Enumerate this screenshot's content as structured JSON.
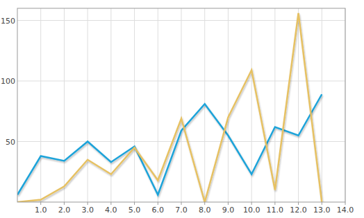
{
  "chart_data": {
    "type": "line",
    "x": [
      0,
      1,
      2,
      3,
      4,
      5,
      6,
      7,
      8,
      9,
      10,
      11,
      12,
      13
    ],
    "series": [
      {
        "color": "#1ea3d9",
        "values": [
          6,
          38,
          34,
          50,
          33,
          46,
          6,
          59,
          81,
          55,
          23,
          62,
          55,
          89
        ]
      },
      {
        "color": "#e6c163",
        "values": [
          0,
          2,
          13,
          35,
          23,
          45,
          18,
          69,
          0,
          70,
          109,
          10,
          156,
          0
        ]
      }
    ],
    "xlim": [
      0,
      14
    ],
    "xticks": [
      {
        "value": 1,
        "label": "1.0"
      },
      {
        "value": 2,
        "label": "2.0"
      },
      {
        "value": 3,
        "label": "3.0"
      },
      {
        "value": 4,
        "label": "4.0"
      },
      {
        "value": 5,
        "label": "5.0"
      },
      {
        "value": 6,
        "label": "6.0"
      },
      {
        "value": 7,
        "label": "7.0"
      },
      {
        "value": 8,
        "label": "8.0"
      },
      {
        "value": 9,
        "label": "9.0"
      },
      {
        "value": 10,
        "label": "10.0"
      },
      {
        "value": 11,
        "label": "11.0"
      },
      {
        "value": 12,
        "label": "12.0"
      },
      {
        "value": 13,
        "label": "13.0"
      },
      {
        "value": 14,
        "label": "14.0"
      }
    ],
    "ylim": [
      0,
      160
    ],
    "yticks": [
      50,
      100,
      150
    ],
    "grid": true
  }
}
